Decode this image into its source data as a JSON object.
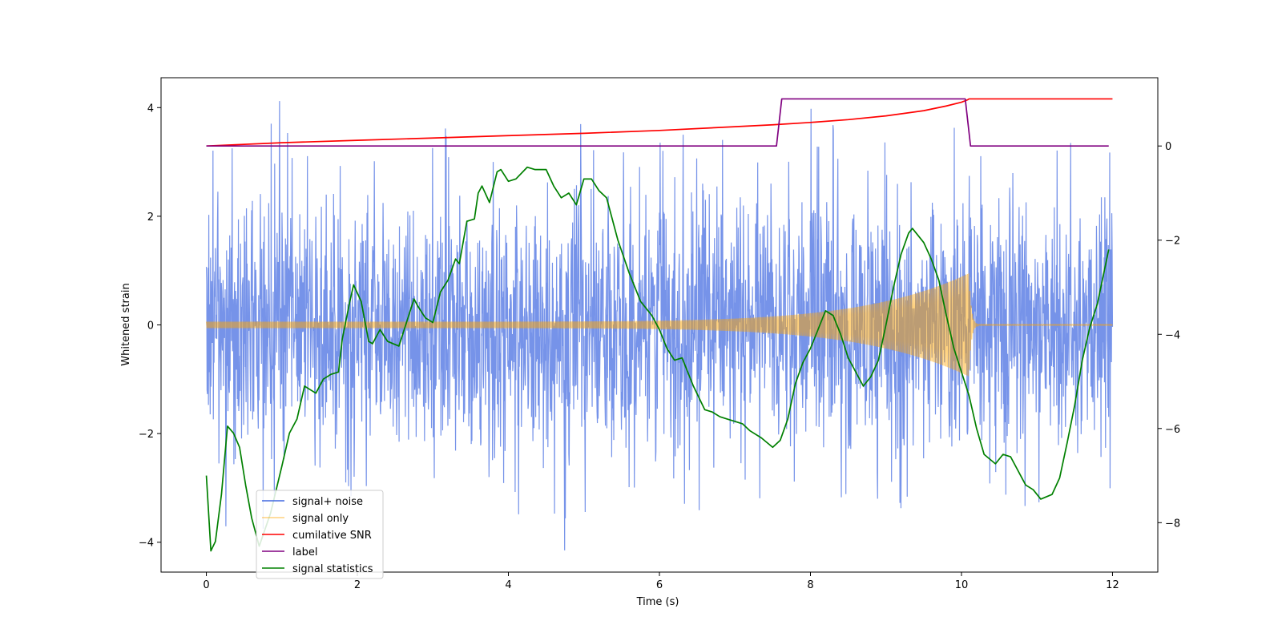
{
  "chart_data": {
    "type": "line",
    "title": "",
    "xlabel": "Time (s)",
    "ylabel": "Whitened strain",
    "ylabel_right": "",
    "xlim": [
      -0.6,
      12.6
    ],
    "ylim": [
      -4.55,
      4.55
    ],
    "ylim_right": [
      -9.05,
      1.45
    ],
    "x_ticks": [
      0,
      2,
      4,
      6,
      8,
      10,
      12
    ],
    "y_ticks": [
      -4,
      -2,
      0,
      2,
      4
    ],
    "y_ticks_right": [
      -8,
      -6,
      -4,
      -2,
      0
    ],
    "x_tick_labels": [
      "0",
      "2",
      "4",
      "6",
      "8",
      "10",
      "12"
    ],
    "y_tick_labels": [
      "−4",
      "−2",
      "0",
      "2",
      "4"
    ],
    "y_tick_labels_right": [
      "−8",
      "−6",
      "−4",
      "−2",
      "0"
    ],
    "grid": false,
    "legend_position": "lower-left",
    "series": [
      {
        "name": "signal+ noise",
        "axis": "left",
        "color": "#4169e1",
        "noise": {
          "t_start": 0,
          "t_end": 12,
          "sigma": 1.0,
          "peak_max": 4.12,
          "trough_min": -4.15
        }
      },
      {
        "name": "signal only",
        "axis": "left",
        "color": "#ffa500",
        "chirp": {
          "t_start": 0,
          "t_merger": 10.1,
          "t_end": 12,
          "amp_start": 0.06,
          "amp_merger": 0.95
        }
      },
      {
        "name": "cumilative SNR",
        "axis": "right",
        "color": "#ff0000",
        "x": [
          0,
          1,
          2,
          3,
          4,
          5,
          6,
          7,
          7.5,
          8,
          8.5,
          9,
          9.5,
          9.8,
          10,
          10.08,
          10.1,
          12
        ],
        "y": [
          0,
          0.07,
          0.12,
          0.17,
          0.22,
          0.27,
          0.33,
          0.41,
          0.45,
          0.5,
          0.56,
          0.64,
          0.75,
          0.85,
          0.93,
          0.98,
          1.0,
          1.0
        ]
      },
      {
        "name": "label",
        "axis": "right",
        "color": "#800080",
        "x": [
          0,
          7.55,
          7.62,
          10.05,
          10.12,
          11.95
        ],
        "y": [
          0,
          0,
          1,
          1,
          0,
          0
        ]
      },
      {
        "name": "signal statistics",
        "axis": "right",
        "color": "#008000",
        "x": [
          0,
          0.06,
          0.12,
          0.2,
          0.28,
          0.36,
          0.44,
          0.52,
          0.6,
          0.7,
          0.85,
          1.0,
          1.1,
          1.2,
          1.3,
          1.45,
          1.55,
          1.65,
          1.75,
          1.8,
          1.9,
          1.95,
          2.05,
          2.15,
          2.2,
          2.3,
          2.4,
          2.55,
          2.65,
          2.75,
          2.8,
          2.9,
          3.0,
          3.1,
          3.2,
          3.3,
          3.35,
          3.45,
          3.55,
          3.6,
          3.65,
          3.75,
          3.85,
          3.9,
          4.0,
          4.1,
          4.25,
          4.35,
          4.5,
          4.6,
          4.7,
          4.8,
          4.9,
          5.0,
          5.1,
          5.2,
          5.3,
          5.45,
          5.6,
          5.75,
          5.9,
          6.0,
          6.1,
          6.2,
          6.3,
          6.45,
          6.6,
          6.7,
          6.8,
          6.9,
          7.0,
          7.1,
          7.2,
          7.35,
          7.5,
          7.6,
          7.7,
          7.8,
          7.9,
          8.0,
          8.1,
          8.2,
          8.3,
          8.4,
          8.5,
          8.6,
          8.7,
          8.8,
          8.9,
          9.0,
          9.1,
          9.2,
          9.3,
          9.35,
          9.5,
          9.6,
          9.7,
          9.8,
          9.9,
          10.0,
          10.1,
          10.2,
          10.3,
          10.45,
          10.55,
          10.65,
          10.75,
          10.85,
          10.95,
          11.05,
          11.2,
          11.3,
          11.4,
          11.5,
          11.6,
          11.7,
          11.8,
          11.95
        ],
        "y": [
          -7.0,
          -8.6,
          -8.4,
          -7.4,
          -5.95,
          -6.1,
          -6.4,
          -7.2,
          -7.9,
          -8.5,
          -7.8,
          -6.8,
          -6.1,
          -5.8,
          -5.1,
          -5.25,
          -4.95,
          -4.85,
          -4.8,
          -4.1,
          -3.3,
          -2.95,
          -3.3,
          -4.15,
          -4.2,
          -3.9,
          -4.15,
          -4.25,
          -3.75,
          -3.25,
          -3.4,
          -3.65,
          -3.75,
          -3.1,
          -2.85,
          -2.4,
          -2.5,
          -1.6,
          -1.55,
          -1.0,
          -0.85,
          -1.2,
          -0.55,
          -0.5,
          -0.75,
          -0.7,
          -0.45,
          -0.5,
          -0.5,
          -0.85,
          -1.1,
          -1.0,
          -1.25,
          -0.7,
          -0.7,
          -0.95,
          -1.1,
          -2.0,
          -2.7,
          -3.3,
          -3.6,
          -3.9,
          -4.3,
          -4.55,
          -4.5,
          -5.1,
          -5.6,
          -5.65,
          -5.75,
          -5.8,
          -5.85,
          -5.9,
          -6.05,
          -6.2,
          -6.4,
          -6.25,
          -5.8,
          -5.05,
          -4.6,
          -4.3,
          -3.9,
          -3.5,
          -3.6,
          -4.0,
          -4.5,
          -4.8,
          -5.1,
          -4.9,
          -4.55,
          -3.8,
          -3.0,
          -2.3,
          -1.85,
          -1.75,
          -2.05,
          -2.4,
          -2.85,
          -3.6,
          -4.3,
          -4.8,
          -5.3,
          -6.0,
          -6.55,
          -6.75,
          -6.55,
          -6.6,
          -6.9,
          -7.2,
          -7.3,
          -7.5,
          -7.4,
          -7.05,
          -6.3,
          -5.5,
          -4.55,
          -3.85,
          -3.35,
          -2.2
        ]
      }
    ]
  }
}
